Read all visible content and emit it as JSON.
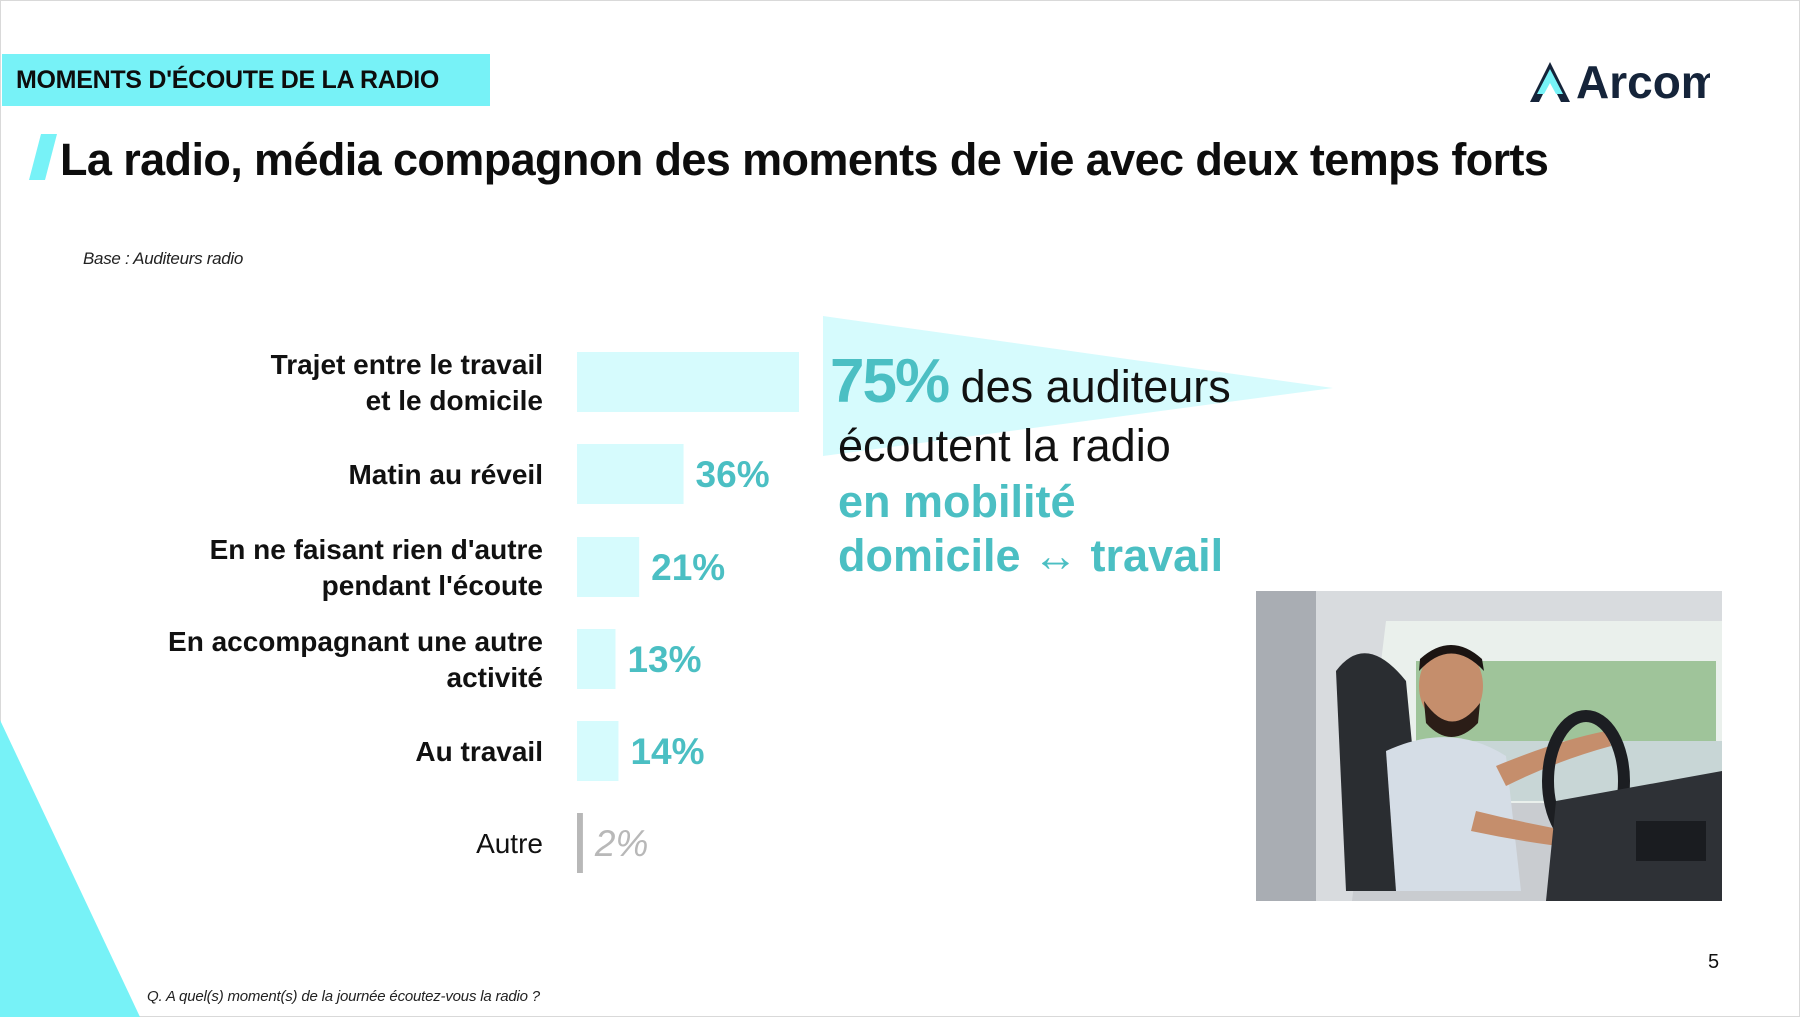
{
  "section_tag": "MOMENTS D'ÉCOUTE DE LA RADIO",
  "logo_text": "Arcom",
  "headline": "La radio, média compagnon des moments de vie avec deux temps forts",
  "base_note": "Base : Auditeurs radio",
  "callout": {
    "big": "75%",
    "line1": " des auditeurs",
    "line2": "écoutent la radio",
    "line3": "en mobilité",
    "line4": "domicile ↔ travail"
  },
  "page_number": "5",
  "question": "Q. A quel(s) moment(s) de la journée écoutez-vous la radio ?",
  "colors": {
    "accent": "#77f2f7",
    "bar": "#d6fbfd",
    "value": "#4bbfc3",
    "muted": "#b8b8b8",
    "logo_dark": "#15243a"
  },
  "chart_data": {
    "type": "bar",
    "orientation": "horizontal",
    "categories": [
      [
        "Trajet entre le travail",
        "et le domicile"
      ],
      [
        "Matin au réveil"
      ],
      [
        "En ne faisant rien d'autre",
        "pendant l'écoute"
      ],
      [
        "En accompagnant une autre",
        "activité"
      ],
      [
        "Au travail"
      ],
      [
        "Autre"
      ]
    ],
    "values": [
      75,
      36,
      21,
      13,
      14,
      2
    ],
    "value_labels": [
      "",
      "36%",
      "21%",
      "13%",
      "14%",
      "2%"
    ],
    "highlight": [
      false,
      false,
      false,
      false,
      false,
      true
    ],
    "unit": "%",
    "title": "",
    "xlabel": "",
    "ylabel": "",
    "grid": false,
    "legend": "none"
  }
}
